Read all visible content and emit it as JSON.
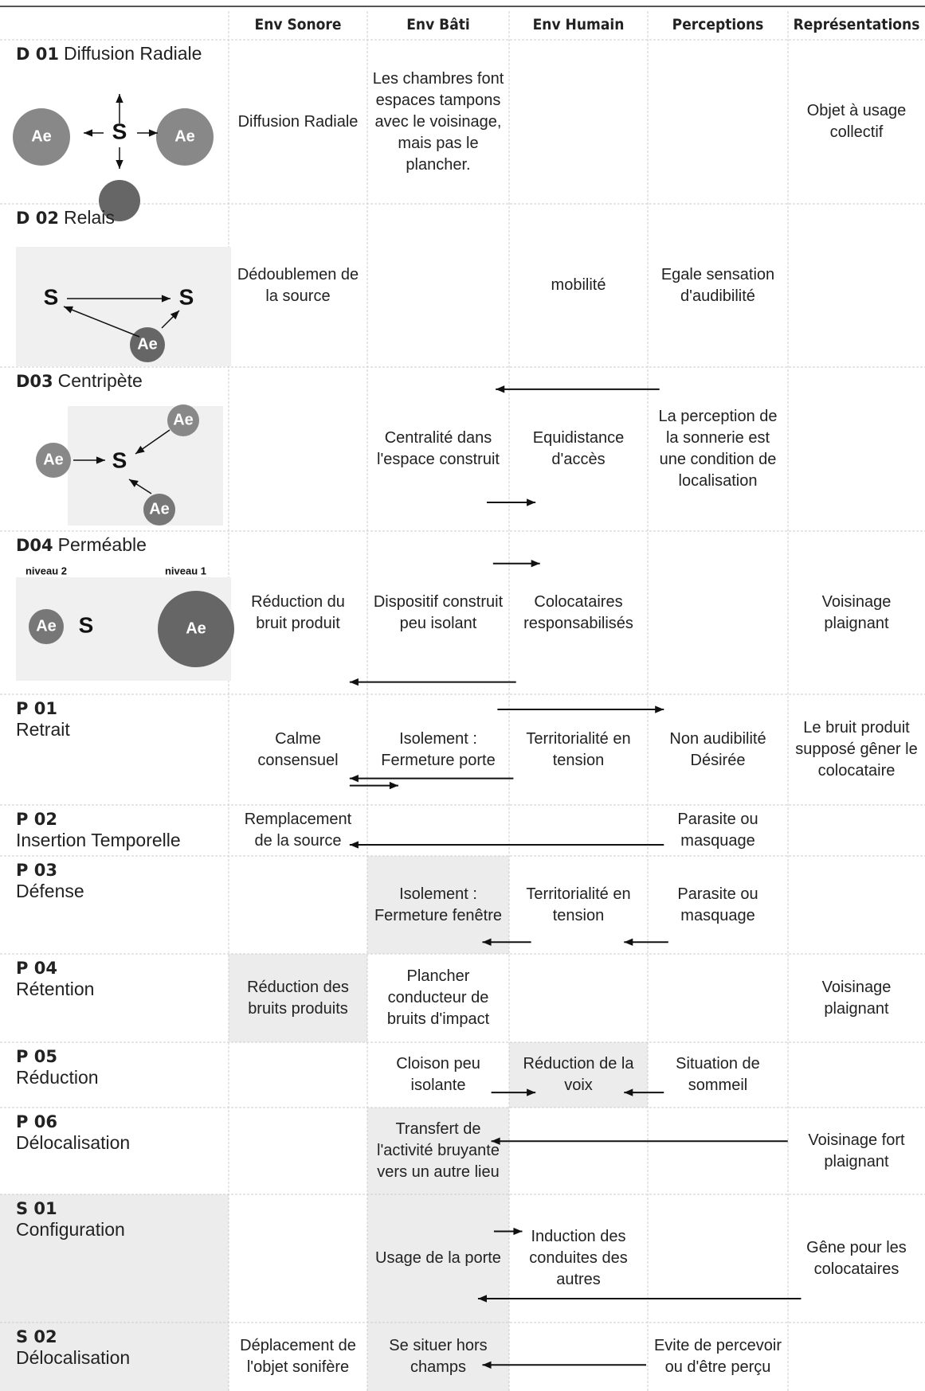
{
  "header": {
    "columns": [
      "Env Sonore",
      "Env Bâti",
      "Env Humain",
      "Perceptions",
      "Représentations"
    ]
  },
  "rows": [
    {
      "code": "D 01",
      "name": "Diffusion Radiale",
      "diagram": [
        "Ae",
        "S",
        "Ae"
      ],
      "cells": [
        "Diffusion Radiale",
        "Les chambres font espaces tampons avec le voisinage, mais pas le plancher.",
        null,
        null,
        "Objet à usage collectif"
      ]
    },
    {
      "code": "D 02",
      "name": "Relais",
      "diagram": [
        "S",
        "S",
        "Ae"
      ],
      "cells": [
        "Dédoublemen de la source",
        null,
        "mobilité",
        "Egale sensation d'audibilité",
        null
      ]
    },
    {
      "code": "D03",
      "name": "Centripète",
      "diagram": [
        "Ae",
        "Ae",
        "S",
        "Ae"
      ],
      "cells": [
        null,
        "Centralité dans l'espace construit",
        "Equidistance d'accès",
        "La perception de la sonnerie est une condition de localisation",
        null
      ]
    },
    {
      "code": "D04",
      "name": "Perméable",
      "diagram": [
        "niveau 2",
        "niveau 1",
        "Ae",
        "S",
        "Ae"
      ],
      "cells": [
        "Réduction du bruit produit",
        "Dispositif construit peu isolant",
        "Colocataires responsabilisés",
        null,
        "Voisinage plaignant"
      ]
    },
    {
      "code": "P 01",
      "name": "Retrait",
      "cells": [
        "Calme consensuel",
        "Isolement : Fermeture porte",
        "Territorialité en tension",
        "Non audibilité Désirée",
        "Le bruit produit supposé gêner le colocataire"
      ]
    },
    {
      "code": "P 02",
      "name": "Insertion Temporelle",
      "cells": [
        "Remplacement de la source",
        null,
        null,
        "Parasite ou masquage",
        null
      ]
    },
    {
      "code": "P 03",
      "name": "Défense",
      "cells": [
        null,
        "Isolement : Fermeture fenêtre",
        "Territorialité en tension",
        "Parasite ou masquage",
        null
      ]
    },
    {
      "code": "P 04",
      "name": "Rétention",
      "cells": [
        "Réduction des bruits produits",
        "Plancher conducteur de bruits d'impact",
        null,
        null,
        "Voisinage plaignant"
      ]
    },
    {
      "code": "P 05",
      "name": "Réduction",
      "cells": [
        null,
        "Cloison peu isolante",
        "Réduction de la voix",
        "Situation de sommeil",
        null
      ]
    },
    {
      "code": "P 06",
      "name": "Délocalisation",
      "cells": [
        null,
        "Transfert de l'activité bruyante vers un autre lieu",
        null,
        null,
        "Voisinage fort plaignant"
      ]
    },
    {
      "code": "S 01",
      "name": "Configuration",
      "cells": [
        null,
        "Usage de la porte",
        "Induction des conduites des autres",
        null,
        "Gêne pour les colocataires"
      ]
    },
    {
      "code": "S 02",
      "name": "Délocalisation",
      "cells": [
        "Déplacement de l'objet sonifère",
        "Se situer hors champs",
        null,
        "Evite de percevoir ou d'être perçu",
        null
      ]
    }
  ]
}
